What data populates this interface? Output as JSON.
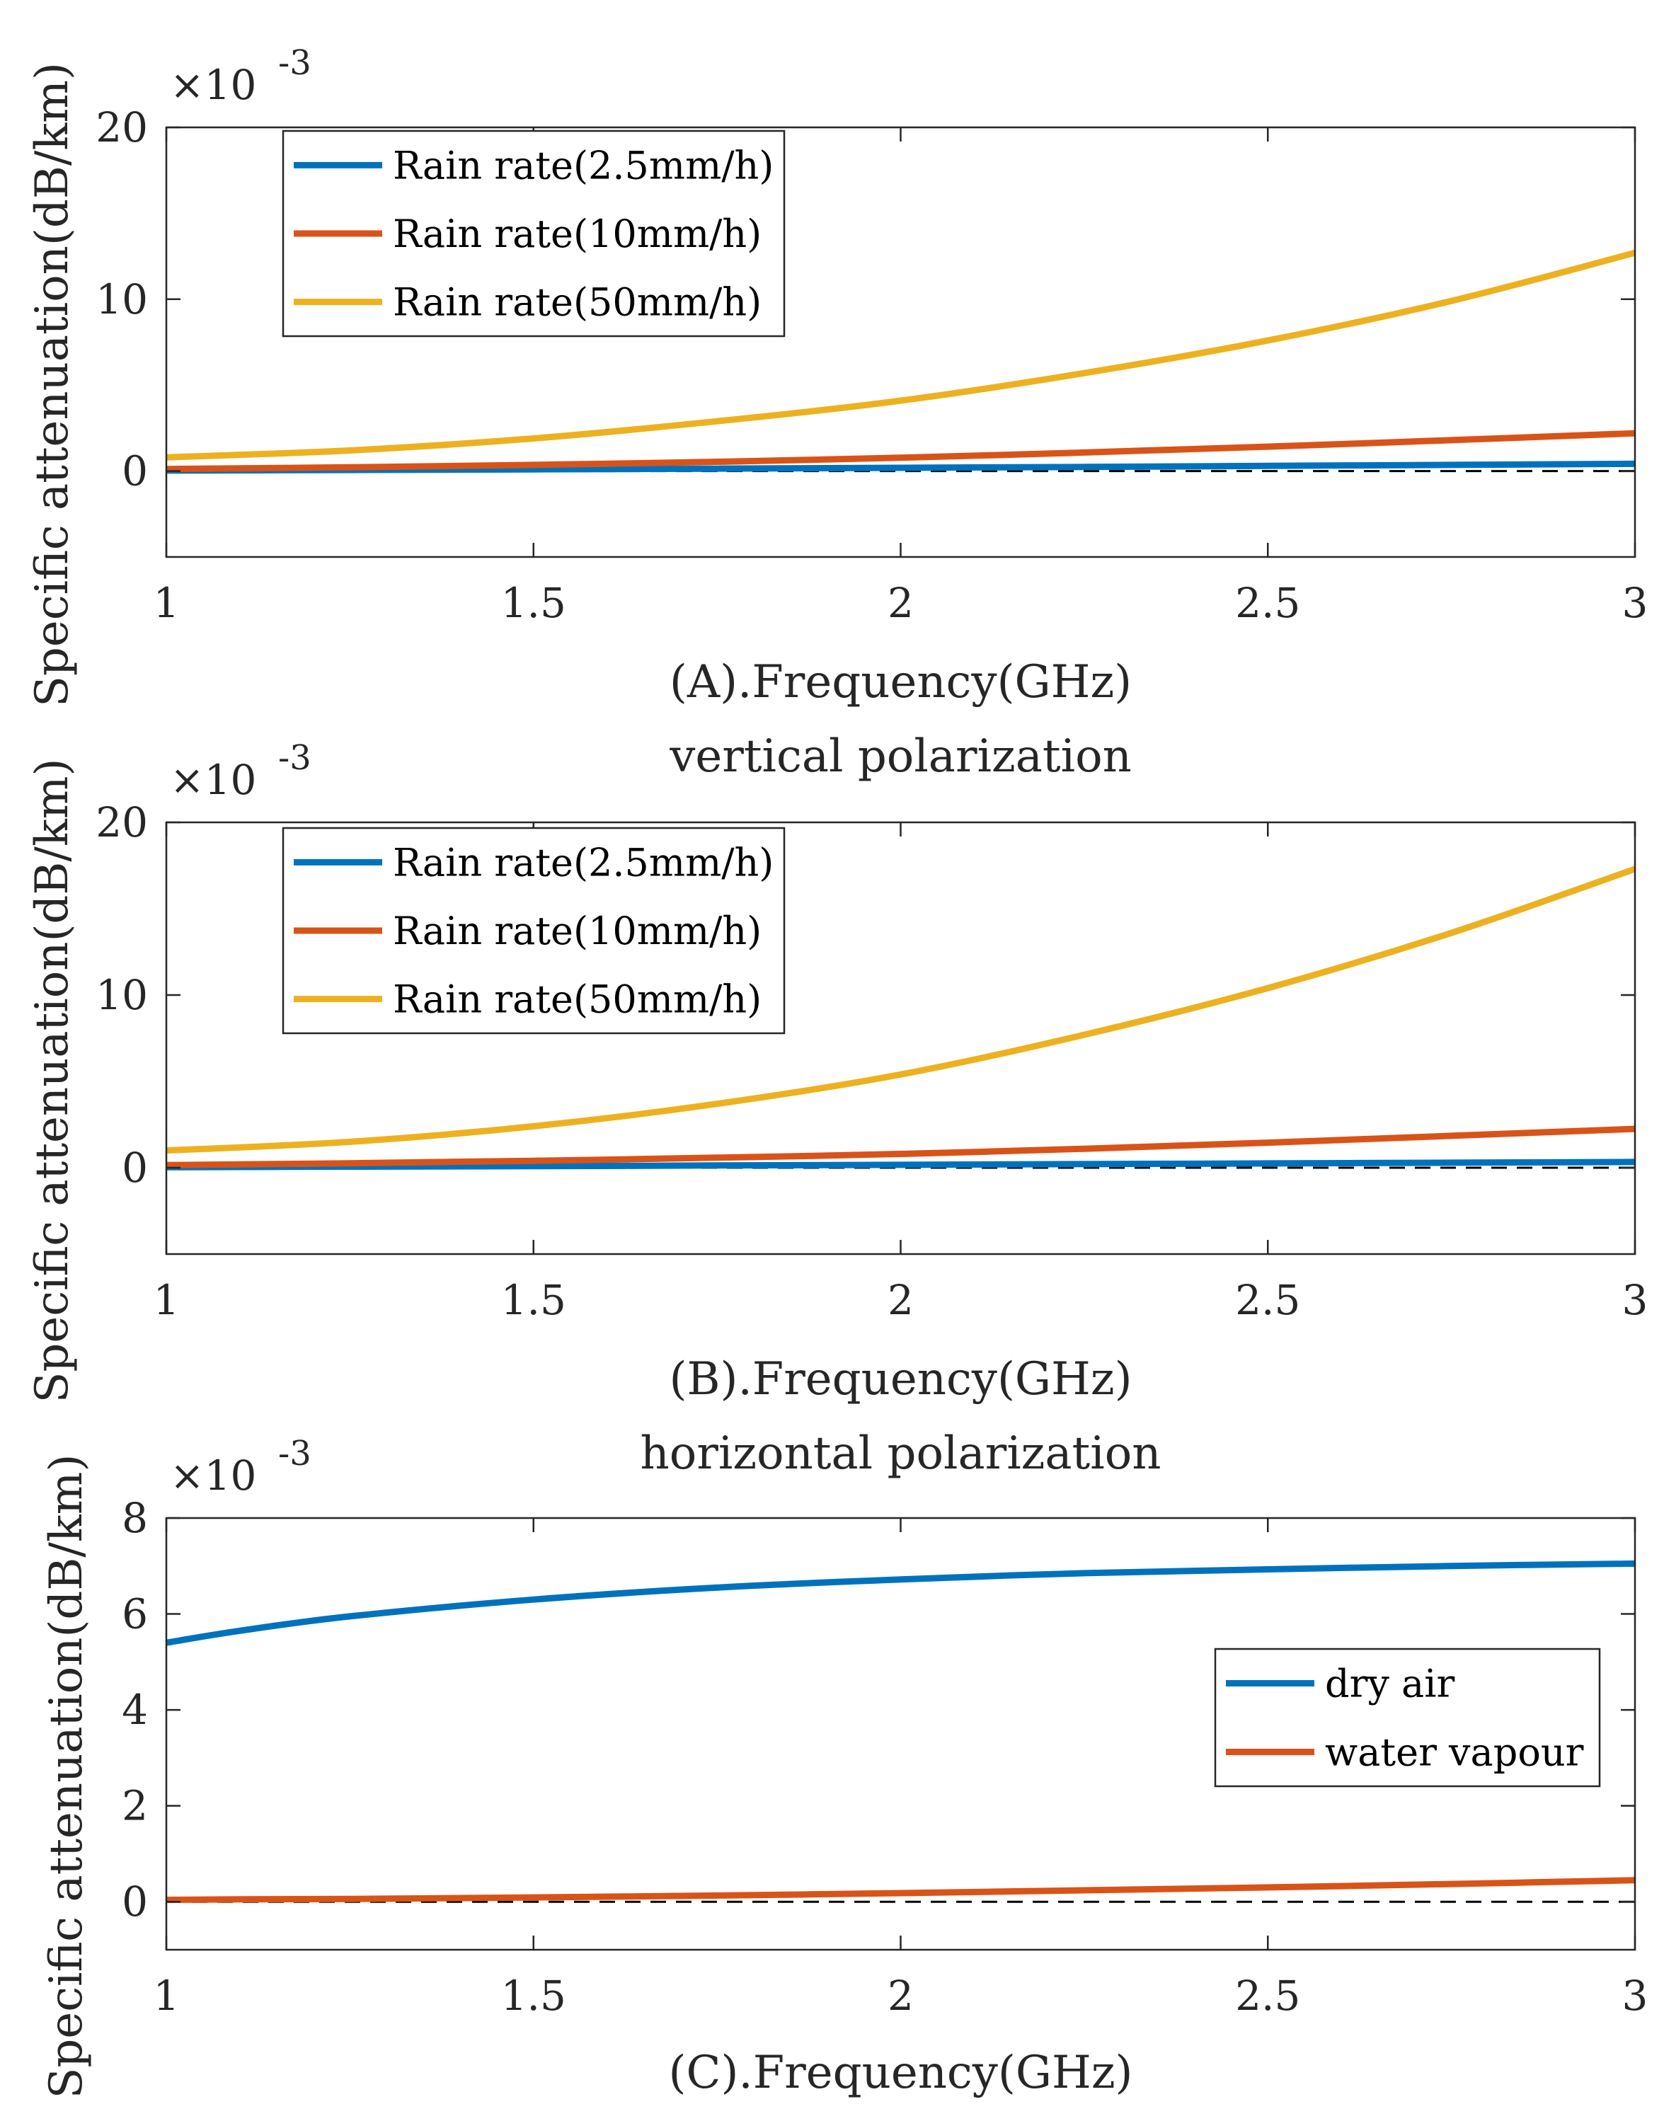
{
  "chart_data": [
    {
      "type": "line",
      "title": "",
      "subtitle": "",
      "xlabel": "(A).Frequency(GHz)",
      "ylabel": "Specific attenuation(dB/km)",
      "y_multiplier": "×10",
      "y_exponent": "-3",
      "xlim": [
        1,
        3
      ],
      "ylim": [
        -5,
        20
      ],
      "xticks": [
        1,
        1.5,
        2,
        2.5,
        3
      ],
      "xtick_labels": [
        "1",
        "1.5",
        "2",
        "2.5",
        "3"
      ],
      "yticks": [
        0,
        10,
        20
      ],
      "ytick_labels": [
        "0",
        "10",
        "20"
      ],
      "legend_position": "top-left",
      "reference_line": 0,
      "x": [
        1,
        1.25,
        1.5,
        1.75,
        2,
        2.25,
        2.5,
        2.75,
        3
      ],
      "series": [
        {
          "name": "Rain rate(2.5mm/h)",
          "color": "#0072BD",
          "values": [
            0.03,
            0.06,
            0.1,
            0.14,
            0.19,
            0.24,
            0.3,
            0.36,
            0.42
          ]
        },
        {
          "name": "Rain rate(10mm/h)",
          "color": "#D95319",
          "values": [
            0.12,
            0.22,
            0.36,
            0.54,
            0.78,
            1.08,
            1.42,
            1.8,
            2.2
          ]
        },
        {
          "name": "Rain rate(50mm/h)",
          "color": "#EDB120",
          "values": [
            0.8,
            1.2,
            1.9,
            2.9,
            4.1,
            5.7,
            7.6,
            9.9,
            12.7
          ]
        }
      ]
    },
    {
      "type": "line",
      "title": "vertical polarization",
      "subtitle": "",
      "xlabel": "(B).Frequency(GHz)",
      "ylabel": "Specific attenuation(dB/km)",
      "y_multiplier": "×10",
      "y_exponent": "-3",
      "xlim": [
        1,
        3
      ],
      "ylim": [
        -5,
        20
      ],
      "xticks": [
        1,
        1.5,
        2,
        2.5,
        3
      ],
      "xtick_labels": [
        "1",
        "1.5",
        "2",
        "2.5",
        "3"
      ],
      "yticks": [
        0,
        10,
        20
      ],
      "ytick_labels": [
        "0",
        "10",
        "20"
      ],
      "legend_position": "top-left",
      "reference_line": 0,
      "x": [
        1,
        1.25,
        1.5,
        1.75,
        2,
        2.25,
        2.5,
        2.75,
        3
      ],
      "series": [
        {
          "name": "Rain rate(2.5mm/h)",
          "color": "#0072BD",
          "values": [
            0.03,
            0.06,
            0.09,
            0.13,
            0.17,
            0.21,
            0.25,
            0.29,
            0.33
          ]
        },
        {
          "name": "Rain rate(10mm/h)",
          "color": "#D95319",
          "values": [
            0.15,
            0.26,
            0.4,
            0.58,
            0.8,
            1.1,
            1.45,
            1.85,
            2.25
          ]
        },
        {
          "name": "Rain rate(50mm/h)",
          "color": "#EDB120",
          "values": [
            1.0,
            1.5,
            2.4,
            3.7,
            5.4,
            7.7,
            10.4,
            13.6,
            17.3
          ]
        }
      ]
    },
    {
      "type": "line",
      "title": "horizontal polarization",
      "subtitle": "",
      "xlabel": "(C).Frequency(GHz)",
      "ylabel": "Specific attenuation(dB/km)",
      "y_multiplier": "×10",
      "y_exponent": "-3",
      "xlim": [
        1,
        3
      ],
      "ylim": [
        -1,
        8
      ],
      "xticks": [
        1,
        1.5,
        2,
        2.5,
        3
      ],
      "xtick_labels": [
        "1",
        "1.5",
        "2",
        "2.5",
        "3"
      ],
      "yticks": [
        0,
        2,
        4,
        6,
        8
      ],
      "ytick_labels": [
        "0",
        "2",
        "4",
        "6",
        "8"
      ],
      "legend_position": "right",
      "reference_line": 0,
      "x": [
        1,
        1.1,
        1.25,
        1.5,
        1.75,
        2,
        2.25,
        2.5,
        2.75,
        3
      ],
      "series": [
        {
          "name": "dry air",
          "color": "#0072BD",
          "values": [
            5.4,
            5.65,
            5.95,
            6.3,
            6.55,
            6.72,
            6.85,
            6.93,
            7.0,
            7.05
          ]
        },
        {
          "name": "water vapour",
          "color": "#D95319",
          "values": [
            0.04,
            0.05,
            0.06,
            0.09,
            0.13,
            0.18,
            0.24,
            0.3,
            0.37,
            0.45
          ]
        }
      ]
    }
  ]
}
